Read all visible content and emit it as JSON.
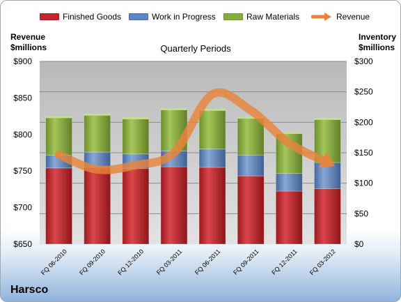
{
  "chart_data": {
    "type": "bar",
    "stacked": true,
    "title": "Quarterly Periods",
    "company": "Harsco",
    "left_axis_label": "Revenue\n$millions",
    "right_axis_label": "Inventory\n$millions",
    "categories": [
      "FQ 06-2010",
      "FQ 09-2010",
      "FQ 12-2010",
      "FQ 03-2011",
      "FQ 06-2011",
      "FQ 09-2011",
      "FQ 12-2011",
      "FQ 03-2012"
    ],
    "series": [
      {
        "name": "Finished Goods",
        "axis": "right",
        "color": "#c0272d",
        "values": [
          125,
          126,
          124,
          127,
          126,
          112,
          87,
          91
        ]
      },
      {
        "name": "Work in Progress",
        "axis": "right",
        "color": "#5b86c4",
        "values": [
          21,
          25,
          24,
          26,
          30,
          34,
          29,
          43
        ]
      },
      {
        "name": "Raw Materials",
        "axis": "right",
        "color": "#86ad3c",
        "values": [
          62,
          61,
          58,
          68,
          64,
          61,
          66,
          71
        ]
      },
      {
        "name": "Revenue",
        "type": "line",
        "axis": "left",
        "color": "#e8843a",
        "values": [
          772,
          752,
          758,
          775,
          855,
          833,
          788,
          762
        ]
      }
    ],
    "y_left": {
      "min": 650,
      "max": 900,
      "step": 50,
      "ticks": [
        "$650",
        "$700",
        "$750",
        "$800",
        "$850",
        "$900"
      ]
    },
    "y_right": {
      "min": 0,
      "max": 300,
      "step": 50,
      "ticks": [
        "$0",
        "$50",
        "$100",
        "$150",
        "$200",
        "$250",
        "$300"
      ]
    },
    "grid": true,
    "legend_position": "top"
  }
}
